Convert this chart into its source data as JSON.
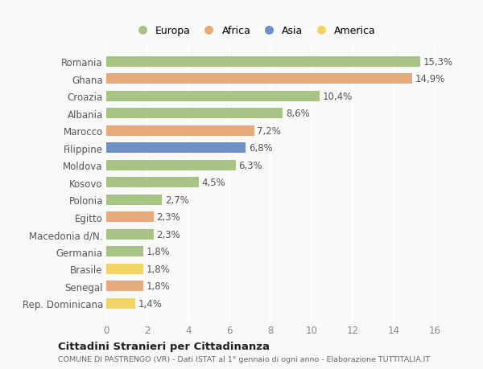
{
  "categories": [
    "Rep. Dominicana",
    "Senegal",
    "Brasile",
    "Germania",
    "Macedonia d/N.",
    "Egitto",
    "Polonia",
    "Kosovo",
    "Moldova",
    "Filippine",
    "Marocco",
    "Albania",
    "Croazia",
    "Ghana",
    "Romania"
  ],
  "values": [
    1.4,
    1.8,
    1.8,
    1.8,
    2.3,
    2.3,
    2.7,
    4.5,
    6.3,
    6.8,
    7.2,
    8.6,
    10.4,
    14.9,
    15.3
  ],
  "labels": [
    "1,4%",
    "1,8%",
    "1,8%",
    "1,8%",
    "2,3%",
    "2,3%",
    "2,7%",
    "4,5%",
    "6,3%",
    "6,8%",
    "7,2%",
    "8,6%",
    "10,4%",
    "14,9%",
    "15,3%"
  ],
  "continents": [
    "America",
    "Africa",
    "America",
    "Europa",
    "Europa",
    "Africa",
    "Europa",
    "Europa",
    "Europa",
    "Asia",
    "Africa",
    "Europa",
    "Europa",
    "Africa",
    "Europa"
  ],
  "continent_colors": {
    "Europa": "#a8c484",
    "Africa": "#e8aa7a",
    "Asia": "#7090c8",
    "America": "#f0d464"
  },
  "legend_order": [
    "Europa",
    "Africa",
    "Asia",
    "America"
  ],
  "title": "Cittadini Stranieri per Cittadinanza",
  "subtitle": "COMUNE DI PASTRENGO (VR) - Dati ISTAT al 1° gennaio di ogni anno - Elaborazione TUTTITALIA.IT",
  "xlim": [
    0,
    16
  ],
  "xticks": [
    0,
    2,
    4,
    6,
    8,
    10,
    12,
    14,
    16
  ],
  "bg_color": "#f9f9f9",
  "plot_bg_color": "#f9f9f9",
  "grid_color": "#ffffff",
  "bar_height": 0.6,
  "label_fontsize": 8.5,
  "tick_fontsize": 8.5,
  "label_color": "#555555"
}
